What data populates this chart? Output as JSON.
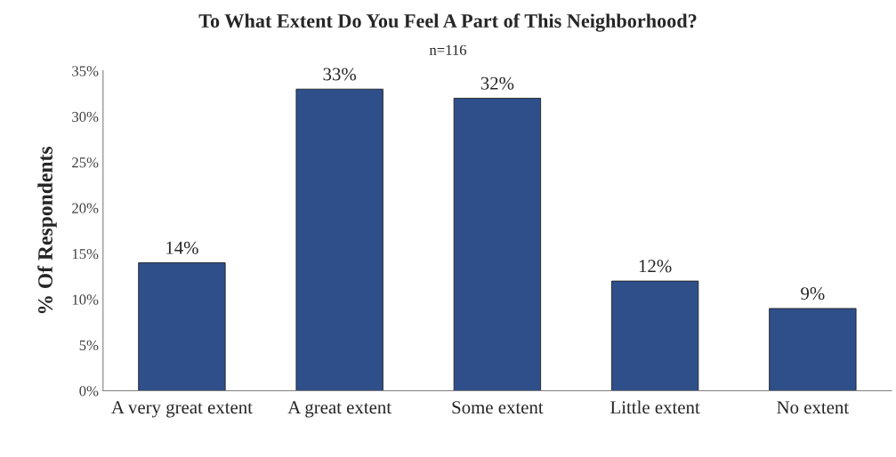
{
  "chart_data": {
    "type": "bar",
    "title": "To What Extent Do You Feel A Part of This Neighborhood?",
    "subtitle": "n=116",
    "ylabel": "% Of Respondents",
    "categories": [
      "A very great extent",
      "A great extent",
      "Some extent",
      "Little extent",
      "No extent"
    ],
    "values": [
      14,
      33,
      32,
      12,
      9
    ],
    "value_labels": [
      "14%",
      "33%",
      "32%",
      "12%",
      "9%"
    ],
    "color": "#2f4f8a",
    "ylim": [
      0,
      35
    ],
    "yticks": [
      {
        "value": 0,
        "label": "0%"
      },
      {
        "value": 5,
        "label": "5%"
      },
      {
        "value": 10,
        "label": "10%"
      },
      {
        "value": 15,
        "label": "15%"
      },
      {
        "value": 20,
        "label": "20%"
      },
      {
        "value": 25,
        "label": "25%"
      },
      {
        "value": 30,
        "label": "30%"
      },
      {
        "value": 35,
        "label": "35%"
      }
    ],
    "grid": false,
    "legend": false
  }
}
